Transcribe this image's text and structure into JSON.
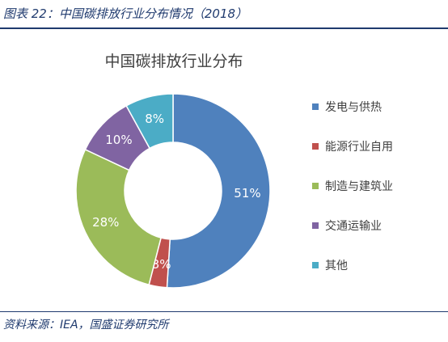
{
  "figure_title": "图表 22：中国碳排放行业分布情况（2018）",
  "source_note": "资料来源：IEA，国盛证券研究所",
  "chart_data": {
    "type": "pie",
    "title": "中国碳排放行业分布",
    "categories": [
      "发电与供热",
      "能源行业自用",
      "制造与建筑业",
      "交通运输业",
      "其他"
    ],
    "values": [
      51,
      3,
      28,
      10,
      8
    ],
    "labels": [
      "51%",
      "3%",
      "28%",
      "10%",
      "8%"
    ],
    "colors": [
      "#4f81bd",
      "#c0504d",
      "#9bbb59",
      "#8064a2",
      "#4bacc6"
    ],
    "donut": true,
    "legend_position": "right"
  }
}
